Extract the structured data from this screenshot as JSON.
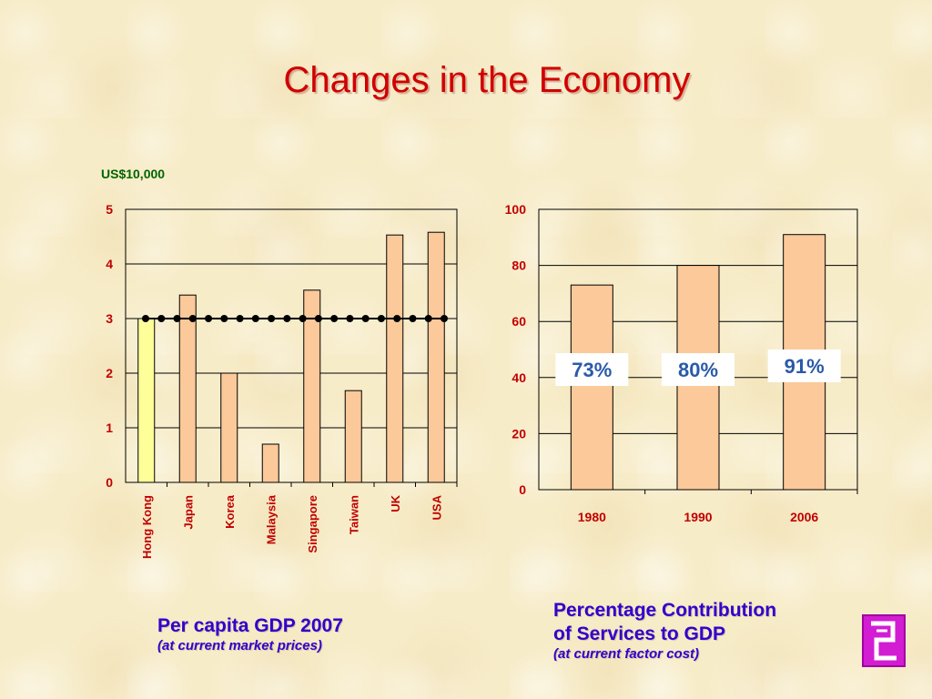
{
  "slide": {
    "title": "Changes in the Economy"
  },
  "left_caption": {
    "main": "Per capita GDP 2007",
    "sub": "(at current market prices)"
  },
  "right_caption": {
    "main_line1": "Percentage Contribution",
    "main_line2": "of Services to GDP",
    "sub": "(at current factor cost)"
  },
  "chart_data": [
    {
      "type": "bar",
      "unit_label": "US$10,000",
      "categories": [
        "Hong Kong",
        "Japan",
        "Korea",
        "Malaysia",
        "Singapore",
        "Taiwan",
        "UK",
        "USA"
      ],
      "values": [
        3.0,
        3.43,
        2.0,
        0.7,
        3.52,
        1.68,
        4.53,
        4.58
      ],
      "highlight_category": "Hong Kong",
      "reference_line": {
        "value": 3.0,
        "style": "dotted"
      },
      "ylim": [
        0,
        5
      ],
      "yticks": [
        0,
        1,
        2,
        3,
        4,
        5
      ],
      "grid": true,
      "colors": {
        "bar": "#fbc99a",
        "highlight": "#ffff99",
        "axis": "#000000",
        "labels": "#c00000"
      }
    },
    {
      "type": "bar",
      "categories": [
        "1980",
        "1990",
        "2006"
      ],
      "values": [
        73,
        80,
        91
      ],
      "data_labels": [
        "73%",
        "80%",
        "91%"
      ],
      "ylim": [
        0,
        100
      ],
      "yticks": [
        0,
        20,
        40,
        60,
        80,
        100
      ],
      "grid": true,
      "colors": {
        "bar": "#fbc99a",
        "label_text": "#2a5aa8",
        "label_bg": "#ffffff"
      }
    }
  ]
}
